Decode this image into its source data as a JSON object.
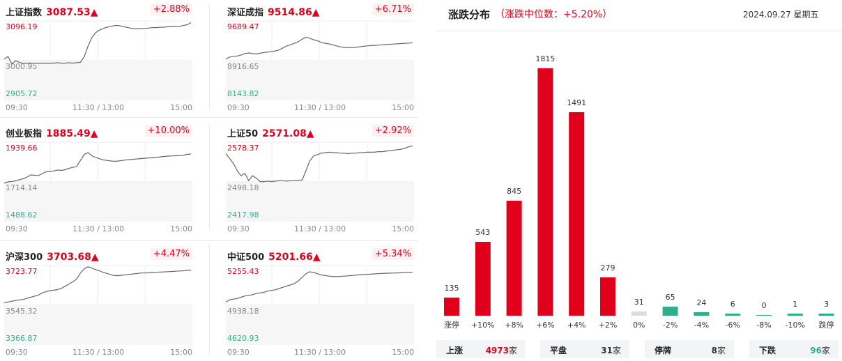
{
  "indices": [
    {
      "name": "上证指数",
      "value": "3087.53▲",
      "change": "+2.88%",
      "yhigh": "3096.19",
      "ymid": "3000.95",
      "ylow": "2905.72",
      "times": [
        "09:30",
        "11:30 / 13:00",
        "15:00"
      ],
      "series": [
        3004,
        3010,
        2992,
        3000,
        2996,
        2993,
        2994,
        2994,
        2993,
        2994,
        2994,
        2994,
        2994,
        2994,
        2995,
        2994,
        2994,
        2995,
        2994,
        2995,
        2996,
        3010,
        3035,
        3056,
        3068,
        3074,
        3078,
        3081,
        3083,
        3085,
        3085,
        3083,
        3081,
        3079,
        3077,
        3077,
        3078,
        3078,
        3079,
        3080,
        3080,
        3081,
        3081,
        3082,
        3082,
        3083,
        3083,
        3085,
        3087,
        3092
      ]
    },
    {
      "name": "深证成指",
      "value": "9514.86▲",
      "change": "+6.71%",
      "yhigh": "9689.47",
      "ymid": "8916.65",
      "ylow": "8143.82",
      "times": [
        "09:30",
        "11:30 / 13:00",
        "15:00"
      ],
      "series": [
        8940,
        8980,
        8995,
        9000,
        9020,
        9050,
        9060,
        9050,
        9040,
        9055,
        9070,
        9080,
        9090,
        9100,
        9120,
        9160,
        9200,
        9220,
        9250,
        9280,
        9330,
        9370,
        9350,
        9320,
        9300,
        9270,
        9250,
        9240,
        9220,
        9200,
        9180,
        9170,
        9165,
        9165,
        9170,
        9180,
        9190,
        9200,
        9205,
        9210,
        9215,
        9220,
        9225,
        9230,
        9235,
        9240,
        9245,
        9250,
        9255,
        9260
      ]
    },
    {
      "name": "创业板指",
      "value": "1885.49▲",
      "change": "+10.00%",
      "yhigh": "1939.66",
      "ymid": "1714.14",
      "ylow": "1488.62",
      "times": [
        "09:30",
        "11:30 / 13:00",
        "15:00"
      ],
      "series": [
        1705,
        1712,
        1715,
        1718,
        1725,
        1730,
        1740,
        1752,
        1750,
        1748,
        1760,
        1770,
        1772,
        1775,
        1780,
        1778,
        1782,
        1790,
        1795,
        1800,
        1835,
        1870,
        1880,
        1862,
        1852,
        1845,
        1838,
        1835,
        1832,
        1830,
        1832,
        1835,
        1838,
        1840,
        1842,
        1844,
        1846,
        1848,
        1850,
        1850,
        1852,
        1856,
        1858,
        1860,
        1861,
        1862,
        1863,
        1865,
        1870,
        1872
      ]
    },
    {
      "name": "上证50",
      "value": "2571.08▲",
      "change": "+2.92%",
      "yhigh": "2578.37",
      "ymid": "2498.18",
      "ylow": "2417.98",
      "times": [
        "09:30",
        "11:30 / 13:00",
        "15:00"
      ],
      "series": [
        2555,
        2545,
        2535,
        2520,
        2510,
        2515,
        2500,
        2510,
        2505,
        2498,
        2498,
        2499,
        2498,
        2499,
        2500,
        2500,
        2499,
        2500,
        2500,
        2501,
        2501,
        2520,
        2540,
        2550,
        2553,
        2556,
        2557,
        2558,
        2557,
        2557,
        2556,
        2556,
        2555,
        2556,
        2556,
        2557,
        2557,
        2558,
        2558,
        2558,
        2559,
        2559,
        2560,
        2561,
        2562,
        2563,
        2564,
        2566,
        2569,
        2571
      ]
    },
    {
      "name": "沪深300",
      "value": "3703.68▲",
      "change": "+4.47%",
      "yhigh": "3723.77",
      "ymid": "3545.32",
      "ylow": "3366.87",
      "times": [
        "09:30",
        "11:30 / 13:00",
        "15:00"
      ],
      "series": [
        3555,
        3558,
        3562,
        3565,
        3568,
        3570,
        3575,
        3580,
        3585,
        3590,
        3600,
        3605,
        3610,
        3612,
        3615,
        3620,
        3630,
        3640,
        3650,
        3662,
        3690,
        3710,
        3718,
        3712,
        3705,
        3700,
        3692,
        3688,
        3682,
        3678,
        3678,
        3680,
        3682,
        3684,
        3686,
        3688,
        3690,
        3690,
        3691,
        3692,
        3693,
        3694,
        3695,
        3696,
        3697,
        3698,
        3699,
        3700,
        3702,
        3703
      ]
    },
    {
      "name": "中证500",
      "value": "5201.66▲",
      "change": "+5.34%",
      "yhigh": "5255.43",
      "ymid": "4938.18",
      "ylow": "4620.93",
      "times": [
        "09:30",
        "11:30 / 13:00",
        "15:00"
      ],
      "series": [
        4960,
        4980,
        4985,
        4990,
        5000,
        5010,
        5015,
        5020,
        5030,
        5035,
        5040,
        5050,
        5055,
        5060,
        5070,
        5080,
        5090,
        5100,
        5110,
        5130,
        5160,
        5190,
        5205,
        5200,
        5190,
        5180,
        5175,
        5170,
        5168,
        5166,
        5168,
        5170,
        5172,
        5175,
        5178,
        5180,
        5182,
        5184,
        5186,
        5188,
        5190,
        5192,
        5193,
        5194,
        5195,
        5196,
        5197,
        5198,
        5200,
        5201
      ]
    }
  ],
  "dist": {
    "title": "涨跌分布",
    "subtitle": "（涨跌中位数：+5.20%）",
    "date": "2024.09.27 星期五",
    "bars": [
      {
        "cat": "涨停",
        "count": 135,
        "tone": "red"
      },
      {
        "cat": "+10%",
        "count": 543,
        "tone": "red"
      },
      {
        "cat": "+8%",
        "count": 845,
        "tone": "red"
      },
      {
        "cat": "+6%",
        "count": 1815,
        "tone": "red"
      },
      {
        "cat": "+4%",
        "count": 1491,
        "tone": "red"
      },
      {
        "cat": "+2%",
        "count": 279,
        "tone": "red"
      },
      {
        "cat": "0%",
        "count": 31,
        "tone": "gray"
      },
      {
        "cat": "-2%",
        "count": 65,
        "tone": "green"
      },
      {
        "cat": "-4%",
        "count": 24,
        "tone": "green"
      },
      {
        "cat": "-6%",
        "count": 6,
        "tone": "green"
      },
      {
        "cat": "-8%",
        "count": 0,
        "tone": "green"
      },
      {
        "cat": "-10%",
        "count": 1,
        "tone": "green"
      },
      {
        "cat": "跌停",
        "count": 3,
        "tone": "green"
      }
    ],
    "summary": [
      {
        "label": "上涨",
        "value": "4973",
        "unit": "家",
        "tone": "red"
      },
      {
        "label": "平盘",
        "value": "31",
        "unit": "家",
        "tone": "gray"
      },
      {
        "label": "停牌",
        "value": "8",
        "unit": "家",
        "tone": "gray"
      },
      {
        "label": "下跌",
        "value": "96",
        "unit": "家",
        "tone": "green"
      }
    ]
  },
  "colors": {
    "up": "#e0001b",
    "down": "#2fae8a",
    "flat": "#dddddd",
    "line": "#666666"
  },
  "chart_data": {
    "type": "bar",
    "title": "涨跌分布",
    "categories": [
      "涨停",
      "+10%",
      "+8%",
      "+6%",
      "+4%",
      "+2%",
      "0%",
      "-2%",
      "-4%",
      "-6%",
      "-8%",
      "-10%",
      "跌停"
    ],
    "values": [
      135,
      543,
      845,
      1815,
      1491,
      279,
      31,
      65,
      24,
      6,
      0,
      1,
      3
    ]
  }
}
